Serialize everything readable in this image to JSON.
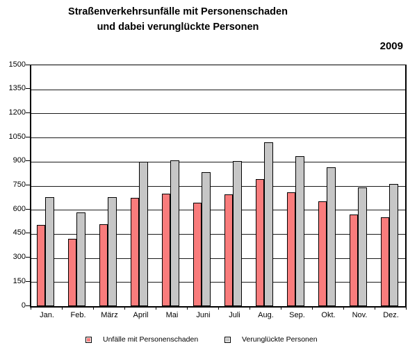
{
  "title": {
    "line1": "Straßenverkehrsunfälle mit Personenschaden",
    "line2": "und dabei verunglückte Personen",
    "year": "2009"
  },
  "chart_data": {
    "type": "bar",
    "title": "Straßenverkehrsunfälle mit Personenschaden und dabei verunglückte Personen",
    "subtitle": "2009",
    "categories": [
      "Jan.",
      "Feb.",
      "März",
      "April",
      "Mai",
      "Juni",
      "Juli",
      "Aug.",
      "Sep.",
      "Okt.",
      "Nov.",
      "Dez."
    ],
    "series": [
      {
        "name": "Unfälle mit Personenschaden",
        "color": "#F97C7C",
        "values": [
          505,
          420,
          510,
          675,
          700,
          645,
          695,
          790,
          710,
          655,
          570,
          555
        ]
      },
      {
        "name": "Verunglückte Personen",
        "color": "#C6C6C6",
        "values": [
          680,
          585,
          680,
          900,
          910,
          835,
          905,
          1020,
          935,
          865,
          740,
          760
        ]
      }
    ],
    "xlabel": "",
    "ylabel": "",
    "ylim": [
      0,
      1500
    ],
    "ytick_interval": 150,
    "grid": true,
    "legend_position": "bottom"
  }
}
